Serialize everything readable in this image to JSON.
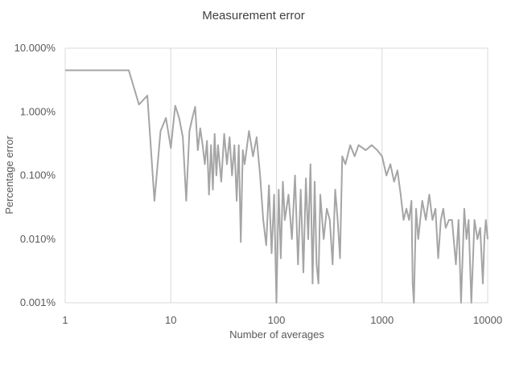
{
  "chart_data": {
    "type": "line",
    "title": "Measurement error",
    "xlabel": "Number of averages",
    "ylabel": "Percentage error",
    "x_scale": "log",
    "y_scale": "log",
    "xlim": [
      1,
      10000
    ],
    "ylim": [
      0.001,
      10
    ],
    "x_ticks": [
      1,
      10,
      100,
      1000,
      10000
    ],
    "x_tick_labels": [
      "1",
      "10",
      "100",
      "1000",
      "10000"
    ],
    "y_ticks": [
      0.001,
      0.01,
      0.1,
      1,
      10
    ],
    "y_tick_labels": [
      "0.001%",
      "0.010%",
      "0.100%",
      "1.000%",
      "10.000%"
    ],
    "grid": "vertical",
    "legend": "none",
    "line_color": "#a5a5a5",
    "series": [
      {
        "x": [
          1,
          2,
          3,
          4,
          5,
          6,
          7,
          8,
          9,
          10,
          11,
          12,
          13,
          14,
          15,
          16,
          17,
          18,
          19,
          20,
          21,
          22,
          23,
          24,
          25,
          26,
          27,
          28,
          30,
          32,
          34,
          36,
          38,
          40,
          42,
          44,
          46,
          48,
          50,
          55,
          60,
          65,
          70,
          75,
          80,
          85,
          90,
          95,
          100,
          105,
          110,
          115,
          120,
          130,
          140,
          150,
          160,
          170,
          180,
          190,
          200,
          210,
          220,
          230,
          240,
          250,
          260,
          280,
          300,
          320,
          340,
          360,
          380,
          400,
          420,
          450,
          500,
          550,
          600,
          700,
          800,
          900,
          1000,
          1100,
          1200,
          1300,
          1400,
          1500,
          1600,
          1700,
          1800,
          1900,
          1950,
          2000,
          2100,
          2200,
          2400,
          2600,
          2800,
          3000,
          3200,
          3400,
          3600,
          3800,
          4000,
          4300,
          4600,
          5000,
          5300,
          5600,
          6000,
          6300,
          6600,
          7000,
          7500,
          8000,
          8500,
          9000,
          9300,
          9600,
          10000
        ],
        "y": [
          4.5,
          4.5,
          4.5,
          4.5,
          1.3,
          1.8,
          0.04,
          0.5,
          0.8,
          0.27,
          1.25,
          0.8,
          0.4,
          0.04,
          0.5,
          0.8,
          1.2,
          0.25,
          0.55,
          0.3,
          0.15,
          0.35,
          0.05,
          0.3,
          0.06,
          0.45,
          0.1,
          0.3,
          0.08,
          0.45,
          0.15,
          0.4,
          0.1,
          0.3,
          0.04,
          0.3,
          0.009,
          0.25,
          0.15,
          0.5,
          0.2,
          0.4,
          0.1,
          0.02,
          0.008,
          0.07,
          0.006,
          0.05,
          0.001,
          0.06,
          0.005,
          0.08,
          0.02,
          0.05,
          0.01,
          0.1,
          0.004,
          0.06,
          0.003,
          0.09,
          0.01,
          0.15,
          0.002,
          0.08,
          0.004,
          0.002,
          0.05,
          0.01,
          0.03,
          0.02,
          0.004,
          0.06,
          0.02,
          0.005,
          0.2,
          0.15,
          0.3,
          0.2,
          0.3,
          0.25,
          0.3,
          0.25,
          0.2,
          0.1,
          0.15,
          0.08,
          0.12,
          0.05,
          0.02,
          0.03,
          0.02,
          0.04,
          0.002,
          0.001,
          0.03,
          0.01,
          0.04,
          0.02,
          0.05,
          0.02,
          0.03,
          0.005,
          0.02,
          0.03,
          0.015,
          0.02,
          0.02,
          0.004,
          0.02,
          0.001,
          0.03,
          0.01,
          0.02,
          0.001,
          0.02,
          0.01,
          0.015,
          0.002,
          0.01,
          0.02,
          0.01
        ]
      }
    ]
  }
}
